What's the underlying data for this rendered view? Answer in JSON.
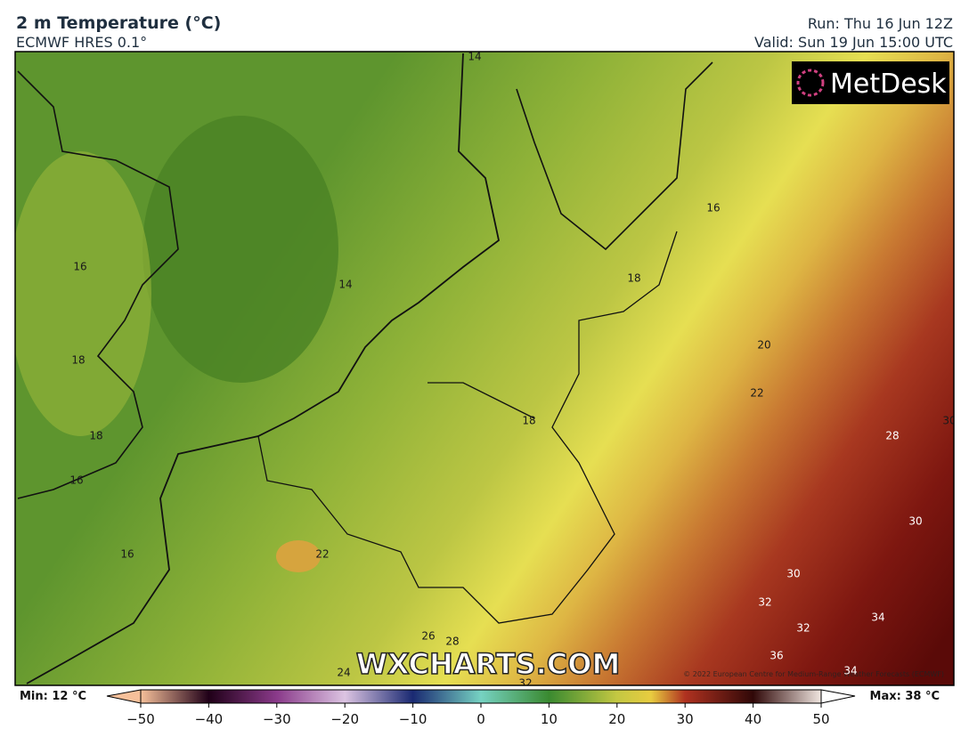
{
  "header": {
    "title": "2 m Temperature (°C)",
    "subtitle": "ECMWF HRES 0.1°",
    "run": "Run: Thu 16 Jun 12Z",
    "valid": "Valid: Sun 19 Jun 15:00 UTC"
  },
  "logo": "MetDesk",
  "watermark": "WXCHARTS.COM",
  "copyright": "© 2022 European Centre for Medium-Range Weather Forecasts (ECMWF)",
  "contour_labels": [
    14,
    14,
    16,
    16,
    18,
    18,
    18,
    16,
    18,
    20,
    22,
    28,
    30,
    30,
    16,
    22,
    30,
    32,
    34,
    32,
    26,
    28,
    36,
    24,
    34,
    32
  ],
  "colorbar": {
    "min_label": "Min: 12 °C",
    "max_label": "Max: 38 °C",
    "ticks": [
      "−50",
      "−40",
      "−30",
      "−20",
      "−10",
      "0",
      "10",
      "20",
      "30",
      "40",
      "50"
    ]
  }
}
